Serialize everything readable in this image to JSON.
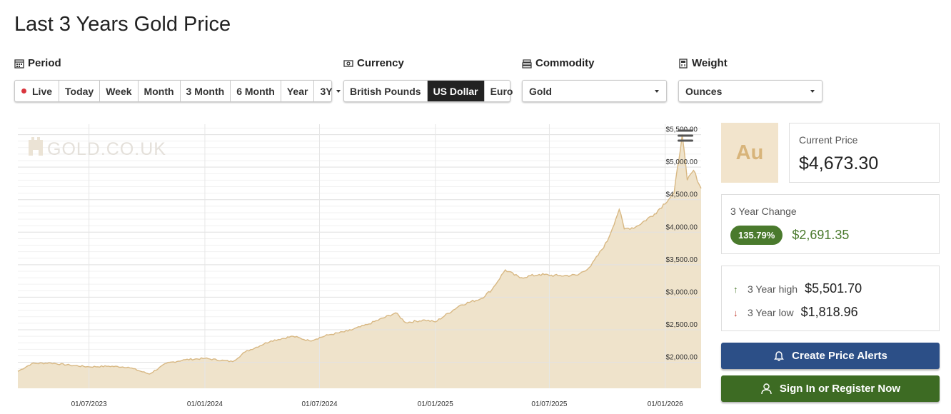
{
  "page": {
    "title": "Last 3 Years Gold Price"
  },
  "controls": {
    "period": {
      "label": "Period",
      "options": [
        "Live",
        "Today",
        "Week",
        "Month",
        "3 Month",
        "6 Month",
        "Year",
        "3Y"
      ],
      "selected": "3Y"
    },
    "currency": {
      "label": "Currency",
      "options": [
        "British Pounds",
        "US Dollar",
        "Euro"
      ],
      "selected": "US Dollar"
    },
    "commodity": {
      "label": "Commodity",
      "value": "Gold"
    },
    "weight": {
      "label": "Weight",
      "value": "Ounces"
    }
  },
  "chart_data": {
    "type": "area",
    "watermark": "GOLD.CO.UK",
    "series": [
      {
        "x": [
          "2023-03-10",
          "2023-04-01",
          "2023-05-01",
          "2023-06-01",
          "2023-07-01",
          "2023-08-01",
          "2023-09-01",
          "2023-10-05",
          "2023-11-01",
          "2023-12-01",
          "2024-01-01",
          "2024-02-14",
          "2024-03-05",
          "2024-04-15",
          "2024-05-20",
          "2024-06-15",
          "2024-07-15",
          "2024-08-15",
          "2024-09-15",
          "2024-10-30",
          "2024-11-15",
          "2024-12-15",
          "2025-01-01",
          "2025-02-10",
          "2025-03-15",
          "2025-04-01",
          "2025-04-22",
          "2025-05-15",
          "2025-06-15",
          "2025-07-15",
          "2025-08-15",
          "2025-09-05",
          "2025-10-01",
          "2025-10-20",
          "2025-10-28",
          "2025-11-15",
          "2025-12-15",
          "2026-01-15",
          "2026-01-28",
          "2026-02-05",
          "2026-02-15",
          "2026-02-27"
        ],
        "y": [
          1860,
          1980,
          1990,
          1955,
          1930,
          1940,
          1925,
          1820,
          1985,
          2040,
          2060,
          2010,
          2160,
          2330,
          2400,
          2330,
          2420,
          2480,
          2580,
          2760,
          2610,
          2650,
          2620,
          2880,
          2980,
          3120,
          3420,
          3300,
          3350,
          3330,
          3340,
          3480,
          3860,
          4350,
          4050,
          4080,
          4280,
          4600,
          5501.7,
          4800,
          4950,
          4673.3
        ]
      }
    ],
    "x_ticks": [
      "01/07/2023",
      "01/01/2024",
      "01/07/2024",
      "01/01/2025",
      "01/07/2025",
      "01/01/2026"
    ],
    "y_ticks": [
      "$2,000.00",
      "$2,500.00",
      "$3,000.00",
      "$3,500.00",
      "$4,000.00",
      "$4,500.00",
      "$5,000.00",
      "$5,500.00"
    ],
    "ylim": [
      1600,
      5660
    ],
    "xlim": [
      "2023-03-10",
      "2026-02-27"
    ],
    "grid": true,
    "fill_color": "#efe3cb",
    "line_color": "#d8b883"
  },
  "summary": {
    "symbol": "Au",
    "current_price": {
      "label": "Current Price",
      "value": "$4,673.30"
    },
    "change": {
      "label": "3 Year Change",
      "percent": "135.79%",
      "amount": "$2,691.35"
    },
    "high": {
      "label": "3 Year high",
      "value": "$5,501.70"
    },
    "low": {
      "label": "3 Year low",
      "value": "$1,818.96"
    }
  },
  "actions": {
    "alerts": "Create Price Alerts",
    "signin": "Sign In or Register Now"
  },
  "colors": {
    "accent_green": "#4a7a2d",
    "accent_blue": "#2c4f87",
    "gold": "#d8b47a"
  }
}
